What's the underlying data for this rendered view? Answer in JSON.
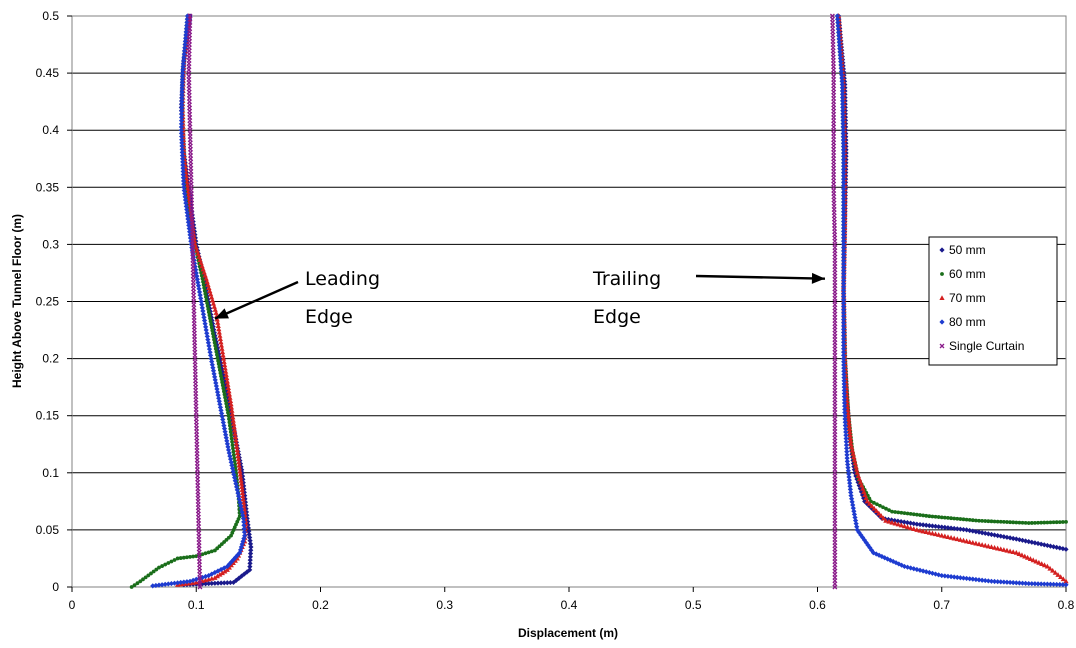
{
  "chart_data": {
    "type": "scatter",
    "xlabel": "Displacement (m)",
    "ylabel": "Height Above Tunnel Floor (m)",
    "xlim": [
      0,
      0.8
    ],
    "ylim": [
      0,
      0.5
    ],
    "x_ticks": [
      "0",
      "0.1",
      "0.2",
      "0.3",
      "0.4",
      "0.5",
      "0.6",
      "0.7",
      "0.8"
    ],
    "y_ticks": [
      "0",
      "0.05",
      "0.1",
      "0.15",
      "0.2",
      "0.25",
      "0.3",
      "0.35",
      "0.4",
      "0.45",
      "0.5"
    ],
    "grid": "horizontal",
    "legend_position": "right",
    "annotations": [
      {
        "lines": [
          "Leading",
          "Edge"
        ],
        "arrow_to": [
          0.115,
          0.235
        ]
      },
      {
        "lines": [
          "Trailing",
          "Edge"
        ],
        "arrow_to": [
          0.606,
          0.27
        ]
      }
    ],
    "series": [
      {
        "name": "50 mm",
        "color": "#1a1a8c",
        "marker": "diamond",
        "leading": [
          [
            0.095,
            0.5
          ],
          [
            0.09,
            0.46
          ],
          [
            0.088,
            0.42
          ],
          [
            0.09,
            0.38
          ],
          [
            0.095,
            0.34
          ],
          [
            0.1,
            0.3
          ],
          [
            0.108,
            0.26
          ],
          [
            0.115,
            0.22
          ],
          [
            0.123,
            0.18
          ],
          [
            0.13,
            0.14
          ],
          [
            0.137,
            0.1
          ],
          [
            0.141,
            0.06
          ],
          [
            0.144,
            0.035
          ],
          [
            0.143,
            0.015
          ],
          [
            0.13,
            0.004
          ],
          [
            0.11,
            0.003
          ],
          [
            0.09,
            0.002
          ]
        ],
        "trailing": [
          [
            0.617,
            0.5
          ],
          [
            0.622,
            0.44
          ],
          [
            0.623,
            0.38
          ],
          [
            0.622,
            0.32
          ],
          [
            0.621,
            0.26
          ],
          [
            0.622,
            0.2
          ],
          [
            0.624,
            0.16
          ],
          [
            0.626,
            0.13
          ],
          [
            0.63,
            0.1
          ],
          [
            0.638,
            0.075
          ],
          [
            0.652,
            0.06
          ],
          [
            0.68,
            0.055
          ],
          [
            0.72,
            0.05
          ],
          [
            0.76,
            0.042
          ],
          [
            0.8,
            0.033
          ]
        ]
      },
      {
        "name": "60 mm",
        "color": "#1a6e1a",
        "marker": "dot",
        "leading": [
          [
            0.093,
            0.5
          ],
          [
            0.089,
            0.45
          ],
          [
            0.089,
            0.4
          ],
          [
            0.091,
            0.35
          ],
          [
            0.097,
            0.31
          ],
          [
            0.105,
            0.27
          ],
          [
            0.112,
            0.23
          ],
          [
            0.119,
            0.19
          ],
          [
            0.126,
            0.15
          ],
          [
            0.131,
            0.11
          ],
          [
            0.134,
            0.08
          ],
          [
            0.135,
            0.062
          ],
          [
            0.128,
            0.045
          ],
          [
            0.115,
            0.032
          ],
          [
            0.1,
            0.027
          ],
          [
            0.085,
            0.025
          ],
          [
            0.07,
            0.017
          ],
          [
            0.055,
            0.005
          ],
          [
            0.048,
            0.0
          ]
        ],
        "trailing": [
          [
            0.616,
            0.5
          ],
          [
            0.62,
            0.44
          ],
          [
            0.621,
            0.38
          ],
          [
            0.621,
            0.32
          ],
          [
            0.621,
            0.26
          ],
          [
            0.622,
            0.2
          ],
          [
            0.625,
            0.15
          ],
          [
            0.628,
            0.12
          ],
          [
            0.633,
            0.095
          ],
          [
            0.643,
            0.075
          ],
          [
            0.66,
            0.066
          ],
          [
            0.69,
            0.062
          ],
          [
            0.73,
            0.058
          ],
          [
            0.77,
            0.056
          ],
          [
            0.8,
            0.057
          ]
        ]
      },
      {
        "name": "70 mm",
        "color": "#d42020",
        "marker": "triangle",
        "leading": [
          [
            0.094,
            0.5
          ],
          [
            0.09,
            0.46
          ],
          [
            0.089,
            0.42
          ],
          [
            0.09,
            0.38
          ],
          [
            0.094,
            0.34
          ],
          [
            0.099,
            0.3
          ],
          [
            0.108,
            0.27
          ],
          [
            0.116,
            0.24
          ],
          [
            0.122,
            0.2
          ],
          [
            0.128,
            0.16
          ],
          [
            0.133,
            0.12
          ],
          [
            0.137,
            0.085
          ],
          [
            0.14,
            0.055
          ],
          [
            0.139,
            0.04
          ],
          [
            0.133,
            0.025
          ],
          [
            0.125,
            0.015
          ],
          [
            0.115,
            0.008
          ],
          [
            0.1,
            0.004
          ],
          [
            0.085,
            0.002
          ]
        ],
        "trailing": [
          [
            0.617,
            0.5
          ],
          [
            0.621,
            0.44
          ],
          [
            0.622,
            0.38
          ],
          [
            0.622,
            0.32
          ],
          [
            0.621,
            0.26
          ],
          [
            0.622,
            0.2
          ],
          [
            0.624,
            0.16
          ],
          [
            0.627,
            0.125
          ],
          [
            0.632,
            0.1
          ],
          [
            0.64,
            0.075
          ],
          [
            0.655,
            0.058
          ],
          [
            0.68,
            0.05
          ],
          [
            0.72,
            0.04
          ],
          [
            0.76,
            0.03
          ],
          [
            0.785,
            0.018
          ],
          [
            0.8,
            0.005
          ]
        ]
      },
      {
        "name": "80 mm",
        "color": "#1e3cd0",
        "marker": "diamond",
        "leading": [
          [
            0.093,
            0.5
          ],
          [
            0.089,
            0.45
          ],
          [
            0.088,
            0.4
          ],
          [
            0.09,
            0.35
          ],
          [
            0.096,
            0.3
          ],
          [
            0.104,
            0.25
          ],
          [
            0.112,
            0.2
          ],
          [
            0.119,
            0.16
          ],
          [
            0.126,
            0.12
          ],
          [
            0.133,
            0.085
          ],
          [
            0.138,
            0.06
          ],
          [
            0.139,
            0.045
          ],
          [
            0.135,
            0.03
          ],
          [
            0.125,
            0.018
          ],
          [
            0.11,
            0.01
          ],
          [
            0.095,
            0.005
          ],
          [
            0.08,
            0.003
          ],
          [
            0.065,
            0.001
          ]
        ],
        "trailing": [
          [
            0.616,
            0.5
          ],
          [
            0.62,
            0.44
          ],
          [
            0.621,
            0.38
          ],
          [
            0.621,
            0.32
          ],
          [
            0.621,
            0.26
          ],
          [
            0.621,
            0.2
          ],
          [
            0.622,
            0.15
          ],
          [
            0.624,
            0.11
          ],
          [
            0.627,
            0.08
          ],
          [
            0.632,
            0.05
          ],
          [
            0.645,
            0.03
          ],
          [
            0.67,
            0.018
          ],
          [
            0.7,
            0.01
          ],
          [
            0.74,
            0.005
          ],
          [
            0.77,
            0.003
          ],
          [
            0.8,
            0.002
          ]
        ]
      },
      {
        "name": "Single Curtain",
        "color": "#8a1a8a",
        "marker": "cross",
        "leading": [
          [
            0.095,
            0.5
          ],
          [
            0.094,
            0.45
          ],
          [
            0.095,
            0.4
          ],
          [
            0.096,
            0.35
          ],
          [
            0.097,
            0.3
          ],
          [
            0.098,
            0.25
          ],
          [
            0.099,
            0.2
          ],
          [
            0.1,
            0.15
          ],
          [
            0.101,
            0.1
          ],
          [
            0.102,
            0.05
          ],
          [
            0.103,
            0.0
          ]
        ],
        "trailing": [
          [
            0.612,
            0.5
          ],
          [
            0.613,
            0.45
          ],
          [
            0.613,
            0.4
          ],
          [
            0.613,
            0.35
          ],
          [
            0.614,
            0.3
          ],
          [
            0.614,
            0.25
          ],
          [
            0.614,
            0.2
          ],
          [
            0.614,
            0.15
          ],
          [
            0.614,
            0.1
          ],
          [
            0.614,
            0.05
          ],
          [
            0.614,
            0.0
          ]
        ]
      }
    ]
  }
}
